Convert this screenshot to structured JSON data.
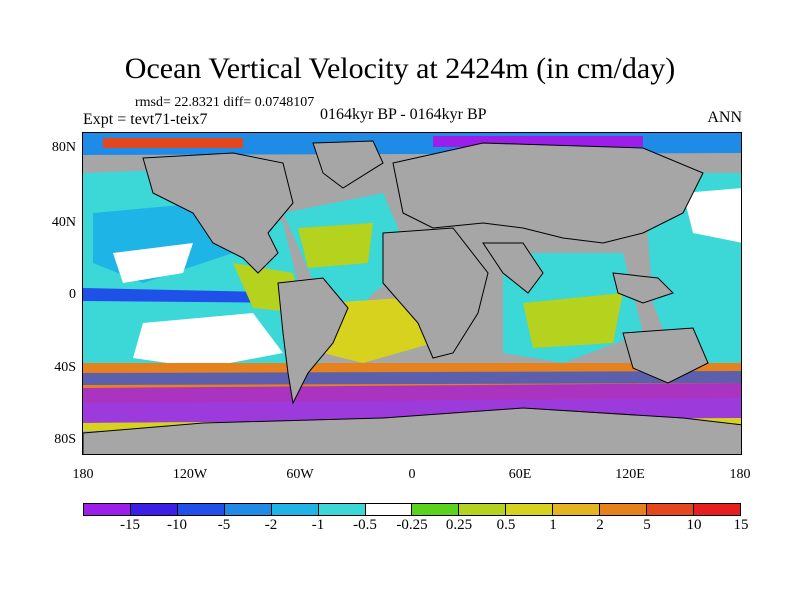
{
  "title": "Ocean Vertical Velocity at 2424m (in cm/day)",
  "stats": "rmsd= 22.8321 diff= 0.0748107",
  "expt": "Expt = tevt71-teix7",
  "period": "0164kyr BP - 0164kyr BP",
  "season": "ANN",
  "lat_labels": [
    "80N",
    "40N",
    "0",
    "40S",
    "80S"
  ],
  "lon_labels": [
    "180",
    "120W",
    "60W",
    "0",
    "60E",
    "120E",
    "180"
  ],
  "colorbar": {
    "colors": [
      "#9b1fe8",
      "#3d1ee6",
      "#1f50e8",
      "#1e8ce6",
      "#1fb4e6",
      "#3cd7d7",
      "#ffffff",
      "#5ad21e",
      "#b4d21e",
      "#d7d21e",
      "#e6b41e",
      "#e6821e",
      "#e6461e",
      "#e61e1e"
    ],
    "labels": [
      "-15",
      "-10",
      "-5",
      "-2",
      "-1",
      "-0.5",
      "-0.25",
      "0.25",
      "0.5",
      "1",
      "2",
      "5",
      "10",
      "15"
    ]
  }
}
